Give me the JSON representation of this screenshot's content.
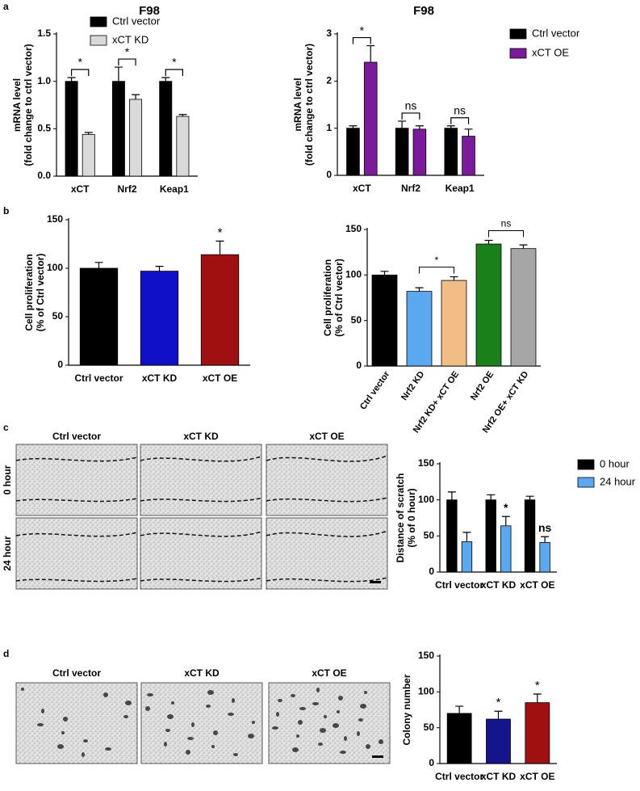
{
  "panel_labels": [
    "a",
    "b",
    "c",
    "d"
  ],
  "micrographs": {
    "c": {
      "columns": [
        "Ctrl vector",
        "xCT KD",
        "xCT OE"
      ],
      "rows": [
        "0 hour",
        "24 hour"
      ]
    },
    "d": {
      "columns": [
        "Ctrl vector",
        "xCT KD",
        "xCT OE"
      ]
    }
  },
  "chart_data": [
    {
      "type": "grouped-bar",
      "title": "F98",
      "ylabel": [
        "mRNA level",
        "(fold change to ctrl vector)"
      ],
      "categories": [
        "xCT",
        "Nrf2",
        "Keap1"
      ],
      "series": [
        {
          "name": "Ctrl vector",
          "color": "#000000",
          "values": [
            1.0,
            1.0,
            1.0
          ],
          "errors": [
            0.04,
            0.15,
            0.04
          ]
        },
        {
          "name": "xCT KD",
          "color": "#d9d9d9",
          "values": [
            0.44,
            0.81,
            0.63
          ],
          "errors": [
            0.02,
            0.05,
            0.02
          ]
        }
      ],
      "significance": [
        "*",
        "*",
        "*"
      ],
      "ylim": [
        0,
        1.5
      ],
      "yticks": [
        {
          "value": 0,
          "label": "0.0"
        },
        {
          "value": 0.5,
          "label": "0.5"
        },
        {
          "value": 1,
          "label": "1.0"
        },
        {
          "value": 1.5,
          "label": "1.5"
        }
      ]
    },
    {
      "type": "grouped-bar",
      "title": "F98",
      "ylabel": [
        "mRNA level",
        "(fold change to ctrl vector)"
      ],
      "categories": [
        "xCT",
        "Nrf2",
        "Keap1"
      ],
      "series": [
        {
          "name": "Ctrl vector",
          "color": "#000000",
          "values": [
            1.0,
            1.0,
            1.0
          ],
          "errors": [
            0.05,
            0.15,
            0.05
          ]
        },
        {
          "name": "xCT OE",
          "color": "#7b1a9a",
          "values": [
            2.4,
            0.98,
            0.83
          ],
          "errors": [
            0.35,
            0.07,
            0.15
          ]
        }
      ],
      "significance": [
        "*",
        "ns",
        "ns"
      ],
      "ylim": [
        0,
        3
      ],
      "yticks": [
        0,
        1,
        2,
        3
      ]
    },
    {
      "type": "bar",
      "ylabel": [
        "Cell proliferation",
        "(% of Ctrl vector)"
      ],
      "categories": [
        "Ctrl vector",
        "xCT KD",
        "xCT OE"
      ],
      "values": [
        100,
        97,
        114
      ],
      "errors": [
        6,
        5,
        14
      ],
      "colors": [
        "#000000",
        "#1010c8",
        "#a01010"
      ],
      "labels": [
        null,
        null,
        "*"
      ],
      "ylim": [
        0,
        150
      ],
      "yticks": [
        0,
        50,
        100,
        150
      ]
    },
    {
      "type": "bar",
      "ylabel": [
        "Cell proliferation",
        "(% of Ctrl vector)"
      ],
      "categories": [
        "Ctrl vector",
        "Nrf2 KD",
        "Nrf2 KD+ xCT OE",
        "Nrf2 OE",
        "Nrf2 OE+ xCT KD"
      ],
      "values": [
        100,
        82,
        94,
        134,
        129
      ],
      "errors": [
        4,
        4,
        4,
        4,
        4
      ],
      "colors": [
        "#000000",
        "#5aa8f0",
        "#f2bc86",
        "#1a801a",
        "#a6a6a6"
      ],
      "brackets": [
        {
          "label": "*",
          "between": [
            1,
            2
          ]
        },
        {
          "label": "ns",
          "between": [
            3,
            4
          ]
        }
      ],
      "ylim": [
        0,
        150
      ],
      "yticks": [
        0,
        50,
        100,
        150
      ]
    },
    {
      "type": "grouped-bar",
      "ylabel": [
        "Distance of scratch",
        "(% of 0 hour)"
      ],
      "categories": [
        "Ctrl vector",
        "xCT KD",
        "xCT OE"
      ],
      "series": [
        {
          "name": "0 hour",
          "color": "#000000",
          "values": [
            100,
            100,
            100
          ],
          "errors": [
            11,
            7,
            5
          ]
        },
        {
          "name": "24 hour",
          "color": "#5aa8f0",
          "values": [
            42,
            64,
            41
          ],
          "errors": [
            13,
            13,
            8
          ],
          "labels": [
            null,
            "*",
            "ns"
          ]
        }
      ],
      "ylim": [
        0,
        150
      ],
      "yticks": [
        0,
        50,
        100,
        150
      ]
    },
    {
      "type": "bar",
      "ylabel": [
        "Colony number"
      ],
      "categories": [
        "Ctrl vector",
        "xCT KD",
        "xCT OE"
      ],
      "values": [
        70,
        62,
        85
      ],
      "errors": [
        10,
        11,
        12
      ],
      "colors": [
        "#000000",
        "#14148c",
        "#a01010"
      ],
      "labels": [
        null,
        "*",
        "*"
      ],
      "ylim": [
        0,
        150
      ],
      "yticks": [
        0,
        50,
        100,
        150
      ]
    }
  ]
}
